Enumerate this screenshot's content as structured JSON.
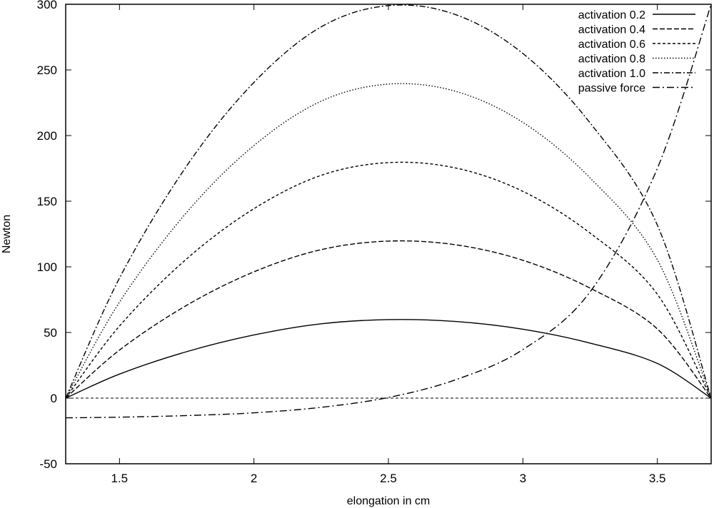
{
  "chart_data": {
    "type": "line",
    "xlabel": "elongation in cm",
    "ylabel": "Newton",
    "xlim": [
      1.3,
      3.7
    ],
    "ylim": [
      -50,
      300
    ],
    "xticks": [
      1.5,
      2,
      2.5,
      3,
      3.5
    ],
    "xtick_labels": [
      "1.5",
      "2",
      "2.5",
      "3",
      "3.5"
    ],
    "yticks": [
      -50,
      0,
      50,
      100,
      150,
      200,
      250,
      300
    ],
    "ytick_labels": [
      "-50",
      "0",
      "50",
      "100",
      "150",
      "200",
      "250",
      "300"
    ],
    "legend_position": "top-right",
    "grid": false,
    "zero_line": true,
    "series": [
      {
        "name": "activation 0.2",
        "style": "solid",
        "x": [
          1.3,
          1.5,
          1.75,
          2.0,
          2.25,
          2.5,
          2.75,
          3.0,
          3.25,
          3.5,
          3.7
        ],
        "y": [
          0,
          18.3,
          35.4,
          48.1,
          56.6,
          59.8,
          58.4,
          52.5,
          41.9,
          26.4,
          0
        ]
      },
      {
        "name": "activation 0.4",
        "style": "dashed",
        "x": [
          1.3,
          1.5,
          1.75,
          2.0,
          2.25,
          2.5,
          2.75,
          3.0,
          3.25,
          3.5,
          3.7
        ],
        "y": [
          0,
          36.6,
          70.7,
          96.2,
          113.1,
          119.6,
          116.8,
          105.0,
          83.8,
          52.7,
          0
        ]
      },
      {
        "name": "activation 0.6",
        "style": "dashed-short",
        "x": [
          1.3,
          1.5,
          1.75,
          2.0,
          2.25,
          2.5,
          2.75,
          3.0,
          3.25,
          3.5,
          3.7
        ],
        "y": [
          0,
          54.9,
          106.1,
          144.3,
          169.7,
          179.4,
          175.3,
          157.5,
          125.7,
          79.1,
          0
        ]
      },
      {
        "name": "activation 0.8",
        "style": "dotted",
        "x": [
          1.3,
          1.5,
          1.75,
          2.0,
          2.25,
          2.5,
          2.75,
          3.0,
          3.25,
          3.5,
          3.7
        ],
        "y": [
          0,
          73.1,
          141.5,
          192.4,
          226.2,
          239.2,
          233.7,
          210.0,
          167.7,
          105.4,
          0
        ]
      },
      {
        "name": "activation 1.0",
        "style": "dash-dot",
        "x": [
          1.3,
          1.5,
          1.75,
          2.0,
          2.25,
          2.5,
          2.75,
          3.0,
          3.25,
          3.5,
          3.7
        ],
        "y": [
          0,
          91.4,
          176.9,
          240.5,
          282.8,
          299.0,
          292.1,
          262.5,
          209.6,
          131.8,
          0
        ]
      },
      {
        "name": "passive force",
        "style": "dash-dot-long",
        "x": [
          1.3,
          1.5,
          1.75,
          2.0,
          2.25,
          2.5,
          2.75,
          3.0,
          3.25,
          3.5,
          3.7
        ],
        "y": [
          -15,
          -14.5,
          -13.3,
          -11.2,
          -7.0,
          0.5,
          14.0,
          37.0,
          81.0,
          175.0,
          300.0
        ]
      }
    ]
  }
}
